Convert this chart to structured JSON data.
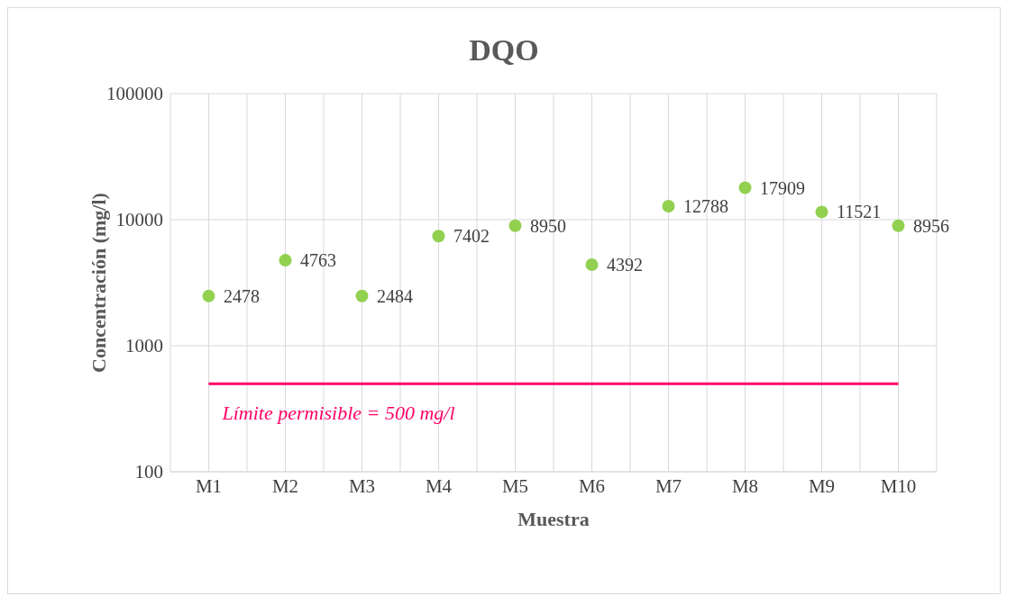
{
  "chart_data": {
    "type": "scatter",
    "title": "DQO",
    "xlabel": "Muestra",
    "ylabel": "Concentración (mg/l)",
    "categories": [
      "M1",
      "M2",
      "M3",
      "M4",
      "M5",
      "M6",
      "M7",
      "M8",
      "M9",
      "M10"
    ],
    "series": [
      {
        "color": "#92d050",
        "values": [
          2478,
          4763,
          2484,
          7402,
          8950,
          4392,
          12788,
          17909,
          11521,
          8956
        ]
      }
    ],
    "log": "y",
    "ylim": [
      100,
      100000
    ],
    "yticks": [
      100,
      1000,
      10000,
      100000
    ],
    "ref_lines": [
      {
        "axis": "y",
        "value": 500,
        "label": "Límite permisible = 500 mg/l",
        "color": "#ff0066"
      }
    ],
    "data_labels": true,
    "grid": true,
    "marker": "circle"
  }
}
